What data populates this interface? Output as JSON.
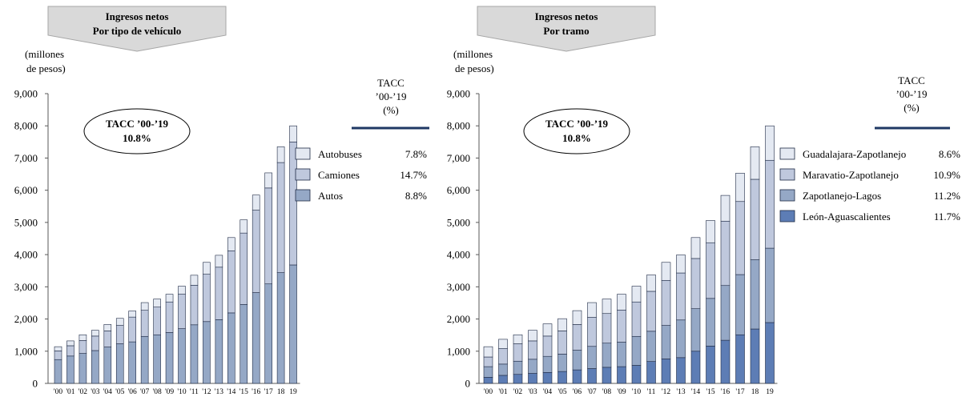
{
  "colors": {
    "banner_fill": "#d9d9d9",
    "banner_edge": "#a6a6a6",
    "axis": "#595959",
    "tacc_line": "#1f3864",
    "bar_stroke": "#1f2a44"
  },
  "chart_data": [
    {
      "type": "bar",
      "stacked": true,
      "banner": {
        "line1": "Ingresos netos",
        "line2": "Por tipo de vehículo"
      },
      "ylabel_line1": "(millones",
      "ylabel_line2": "de pesos)",
      "ylim": [
        0,
        9000
      ],
      "yticks": [
        0,
        1000,
        2000,
        3000,
        4000,
        5000,
        6000,
        7000,
        8000,
        9000
      ],
      "ytick_labels": [
        "0",
        "1,000",
        "2,000",
        "3,000",
        "4,000",
        "5,000",
        "6,000",
        "7,000",
        "8,000",
        "9,000"
      ],
      "categories": [
        "'00",
        "'01",
        "'02",
        "'03",
        "'04",
        "'05",
        "'06",
        "'07",
        "'08",
        "'09",
        "'10",
        "'11",
        "'12",
        "'13",
        "'14",
        "'15",
        "'16",
        "'17",
        "18",
        "19"
      ],
      "callout": {
        "line1": "TACC ’00-’19",
        "line2": "10.8%"
      },
      "tacc_header": {
        "line1": "TACC",
        "line2": "’00-’19",
        "line3": "(%)"
      },
      "legend_placement": "right",
      "series": [
        {
          "name": "Autos",
          "tacc": "8.8%",
          "color": "#95a8c6",
          "values": [
            740,
            850,
            930,
            1020,
            1130,
            1230,
            1290,
            1460,
            1510,
            1580,
            1700,
            1820,
            1920,
            1980,
            2190,
            2450,
            2820,
            3090,
            3440,
            3680
          ]
        },
        {
          "name": "Camiones",
          "tacc": "14.7%",
          "color": "#bfc8dd",
          "values": [
            270,
            320,
            400,
            450,
            500,
            570,
            770,
            810,
            860,
            950,
            1070,
            1230,
            1470,
            1630,
            1930,
            2220,
            2560,
            2980,
            3420,
            3820
          ]
        },
        {
          "name": "Autobuses",
          "tacc": "7.8%",
          "color": "#e4e9f2",
          "values": [
            130,
            150,
            180,
            180,
            200,
            220,
            190,
            240,
            250,
            240,
            250,
            310,
            370,
            370,
            410,
            410,
            470,
            470,
            490,
            500
          ]
        }
      ]
    },
    {
      "type": "bar",
      "stacked": true,
      "banner": {
        "line1": "Ingresos netos",
        "line2": "Por tramo"
      },
      "ylabel_line1": "(millones",
      "ylabel_line2": "de pesos)",
      "ylim": [
        0,
        9000
      ],
      "yticks": [
        0,
        1000,
        2000,
        3000,
        4000,
        5000,
        6000,
        7000,
        8000,
        9000
      ],
      "ytick_labels": [
        "0",
        "1,000",
        "2,000",
        "3,000",
        "4,000",
        "5,000",
        "6,000",
        "7,000",
        "8,000",
        "9,000"
      ],
      "categories": [
        "'00",
        "'01",
        "'02",
        "'03",
        "'04",
        "'05",
        "'06",
        "'07",
        "'08",
        "'09",
        "'10",
        "'11",
        "'12",
        "'13",
        "'14",
        "'15",
        "'16",
        "'17",
        "18",
        "19"
      ],
      "callout": {
        "line1": "TACC ’00-’19",
        "line2": "10.8%"
      },
      "tacc_header": {
        "line1": "TACC",
        "line2": "’00-’19",
        "line3": "(%)"
      },
      "legend_placement": "right",
      "series": [
        {
          "name": "León-Aguascalientes",
          "tacc": "11.7%",
          "color": "#5d7db5",
          "values": [
            190,
            250,
            280,
            310,
            340,
            370,
            420,
            460,
            500,
            520,
            560,
            680,
            760,
            800,
            1000,
            1160,
            1340,
            1510,
            1690,
            1890
          ]
        },
        {
          "name": "Zapotlanejo-Lagos",
          "tacc": "11.2%",
          "color": "#95a8c6",
          "values": [
            330,
            350,
            410,
            440,
            500,
            540,
            610,
            690,
            750,
            760,
            900,
            940,
            1040,
            1170,
            1320,
            1480,
            1700,
            1870,
            2150,
            2310
          ]
        },
        {
          "name": "Maravatio-Zapotlanejo",
          "tacc": "10.9%",
          "color": "#bfc8dd",
          "values": [
            300,
            480,
            540,
            570,
            630,
            720,
            800,
            900,
            920,
            1000,
            1070,
            1240,
            1400,
            1460,
            1560,
            1730,
            2000,
            2270,
            2500,
            2730
          ]
        },
        {
          "name": "Guadalajara-Zapotlanejo",
          "tacc": "8.6%",
          "color": "#e4e9f2",
          "values": [
            320,
            290,
            280,
            330,
            380,
            380,
            430,
            460,
            450,
            490,
            490,
            510,
            560,
            560,
            650,
            690,
            800,
            880,
            1010,
            1070
          ]
        }
      ]
    }
  ]
}
